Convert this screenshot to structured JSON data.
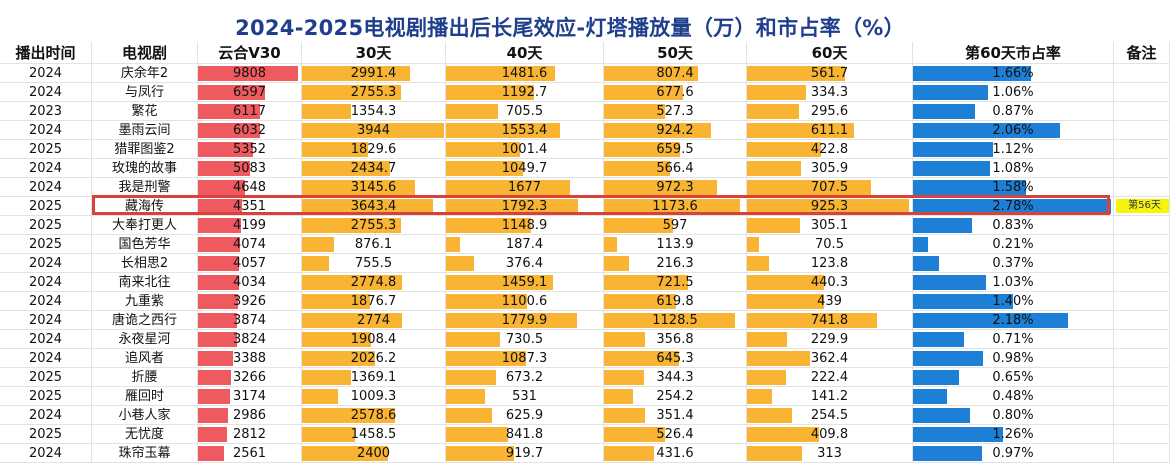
{
  "title": "2024-2025电视剧播出后长尾效应-灯塔播放量（万）和市占率（%）",
  "chart_data": {
    "type": "table",
    "columns": [
      "播出时间",
      "电视剧",
      "云合V30",
      "30天",
      "40天",
      "50天",
      "60天",
      "第60天市占率",
      "备注"
    ],
    "rows": [
      {
        "year": "2024",
        "name": "庆余年2",
        "yunhe": 9808,
        "d30": 2991.4,
        "d40": 1481.6,
        "d50": 807.4,
        "d60": 561.7,
        "share": "1.66%",
        "share_value": 1.66,
        "note": ""
      },
      {
        "year": "2024",
        "name": "与凤行",
        "yunhe": 6597,
        "d30": 2755.3,
        "d40": 1192.7,
        "d50": 677.6,
        "d60": 334.3,
        "share": "1.06%",
        "share_value": 1.06,
        "note": ""
      },
      {
        "year": "2023",
        "name": "繁花",
        "yunhe": 6117,
        "d30": 1354.3,
        "d40": 705.5,
        "d50": 527.3,
        "d60": 295.6,
        "share": "0.87%",
        "share_value": 0.87,
        "note": ""
      },
      {
        "year": "2024",
        "name": "墨雨云间",
        "yunhe": 6032,
        "d30": 3944,
        "d40": 1553.4,
        "d50": 924.2,
        "d60": 611.1,
        "share": "2.06%",
        "share_value": 2.06,
        "note": ""
      },
      {
        "year": "2025",
        "name": "猎罪图鉴2",
        "yunhe": 5352,
        "d30": 1829.6,
        "d40": 1001.4,
        "d50": 659.5,
        "d60": 422.8,
        "share": "1.12%",
        "share_value": 1.12,
        "note": ""
      },
      {
        "year": "2024",
        "name": "玫瑰的故事",
        "yunhe": 5083,
        "d30": 2434.7,
        "d40": 1049.7,
        "d50": 566.4,
        "d60": 305.9,
        "share": "1.08%",
        "share_value": 1.08,
        "note": ""
      },
      {
        "year": "2024",
        "name": "我是刑警",
        "yunhe": 4648,
        "d30": 3145.6,
        "d40": 1677,
        "d50": 972.3,
        "d60": 707.5,
        "share": "1.58%",
        "share_value": 1.58,
        "note": ""
      },
      {
        "year": "2025",
        "name": "藏海传",
        "yunhe": 4351,
        "d30": 3643.4,
        "d40": 1792.3,
        "d50": 1173.6,
        "d60": 925.3,
        "share": "2.78%",
        "share_value": 2.78,
        "note": "第56天",
        "highlighted": true
      },
      {
        "year": "2025",
        "name": "大奉打更人",
        "yunhe": 4199,
        "d30": 2755.3,
        "d40": 1148.9,
        "d50": 597,
        "d60": 305.1,
        "share": "0.83%",
        "share_value": 0.83,
        "note": ""
      },
      {
        "year": "2025",
        "name": "国色芳华",
        "yunhe": 4074,
        "d30": 876.1,
        "d40": 187.4,
        "d50": 113.9,
        "d60": 70.5,
        "share": "0.21%",
        "share_value": 0.21,
        "note": ""
      },
      {
        "year": "2024",
        "name": "长相思2",
        "yunhe": 4057,
        "d30": 755.5,
        "d40": 376.4,
        "d50": 216.3,
        "d60": 123.8,
        "share": "0.37%",
        "share_value": 0.37,
        "note": ""
      },
      {
        "year": "2024",
        "name": "南来北往",
        "yunhe": 4034,
        "d30": 2774.8,
        "d40": 1459.1,
        "d50": 721.5,
        "d60": 440.3,
        "share": "1.03%",
        "share_value": 1.03,
        "note": ""
      },
      {
        "year": "2024",
        "name": "九重紫",
        "yunhe": 3926,
        "d30": 1876.7,
        "d40": 1100.6,
        "d50": 619.8,
        "d60": 439,
        "share": "1.40%",
        "share_value": 1.4,
        "note": ""
      },
      {
        "year": "2024",
        "name": "唐诡之西行",
        "yunhe": 3874,
        "d30": 2774,
        "d40": 1779.9,
        "d50": 1128.5,
        "d60": 741.8,
        "share": "2.18%",
        "share_value": 2.18,
        "note": ""
      },
      {
        "year": "2024",
        "name": "永夜星河",
        "yunhe": 3824,
        "d30": 1908.4,
        "d40": 730.5,
        "d50": 356.8,
        "d60": 229.9,
        "share": "0.71%",
        "share_value": 0.71,
        "note": ""
      },
      {
        "year": "2024",
        "name": "追风者",
        "yunhe": 3388,
        "d30": 2026.2,
        "d40": 1087.3,
        "d50": 645.3,
        "d60": 362.4,
        "share": "0.98%",
        "share_value": 0.98,
        "note": ""
      },
      {
        "year": "2025",
        "name": "折腰",
        "yunhe": 3266,
        "d30": 1369.1,
        "d40": 673.2,
        "d50": 344.3,
        "d60": 222.4,
        "share": "0.65%",
        "share_value": 0.65,
        "note": ""
      },
      {
        "year": "2025",
        "name": "雁回时",
        "yunhe": 3174,
        "d30": 1009.3,
        "d40": 531,
        "d50": 254.2,
        "d60": 141.2,
        "share": "0.48%",
        "share_value": 0.48,
        "note": ""
      },
      {
        "year": "2024",
        "name": "小巷人家",
        "yunhe": 2986,
        "d30": 2578.6,
        "d40": 625.9,
        "d50": 351.4,
        "d60": 254.5,
        "share": "0.80%",
        "share_value": 0.8,
        "note": ""
      },
      {
        "year": "2025",
        "name": "无忧度",
        "yunhe": 2812,
        "d30": 1458.5,
        "d40": 841.8,
        "d50": 526.4,
        "d60": 409.8,
        "share": "1.26%",
        "share_value": 1.26,
        "note": ""
      },
      {
        "year": "2024",
        "name": "珠帘玉幕",
        "yunhe": 2561,
        "d30": 2400,
        "d40": 919.7,
        "d50": 431.6,
        "d60": 313,
        "share": "0.97%",
        "share_value": 0.97,
        "note": ""
      }
    ]
  },
  "colors": {
    "title": "#1f3e8c",
    "yunhe_bar": "#ef5a61",
    "views_bar": "#f8b432",
    "share_bar": "#1d7fd6",
    "highlight_border": "#d9423a",
    "note_bg": "#f4f40e"
  }
}
